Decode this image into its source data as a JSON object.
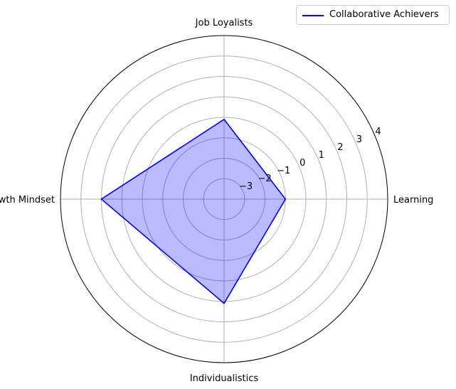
{
  "chart_data": {
    "type": "radar",
    "categories": [
      "Learning",
      "Job Loyalists",
      "Growth Mindset",
      "Individualistics"
    ],
    "series": [
      {
        "name": "Collaborative Achievers",
        "values": [
          -1,
          -0.1,
          2,
          1.1
        ]
      }
    ],
    "r_ticks": [
      -3,
      -2,
      -1,
      0,
      1,
      2,
      3,
      4
    ],
    "r_tick_labels": [
      "−3",
      "−2",
      "−1",
      "0",
      "1",
      "2",
      "3",
      "4"
    ],
    "rlim": [
      -4,
      4
    ],
    "grid": true,
    "legend_position": "top-right",
    "colors": {
      "line": "#0000ff",
      "fill": "#0000ff",
      "grid": "#b0b0b0"
    }
  }
}
